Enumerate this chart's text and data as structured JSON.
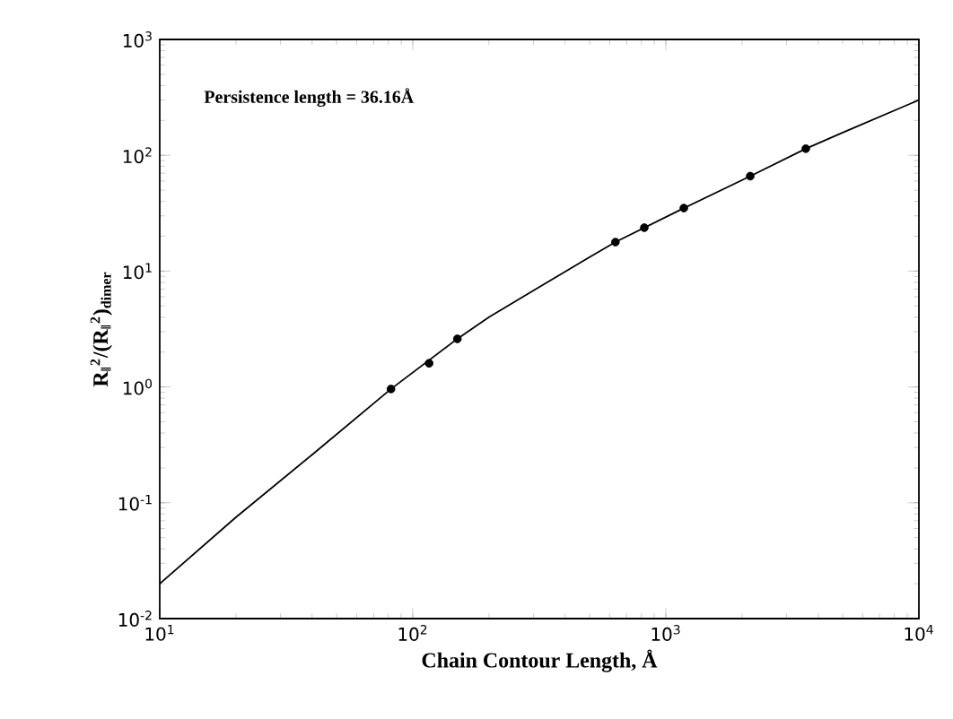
{
  "chart_data": {
    "type": "line",
    "log": "xy",
    "xlabel": "Chain Contour Length, Å",
    "ylabel": "**R$_{‖}$$^{2}$/(R$_{‖}$$^{2}$)$_{dimer}$**",
    "annotations": [
      "Persistence length = 36.16Å"
    ],
    "xlim": [
      10,
      10000
    ],
    "ylim": [
      0.01,
      1000
    ],
    "xticks": [
      {
        "value": 10,
        "label": "10$^{1}$"
      },
      {
        "value": 100,
        "label": "10$^{2}$"
      },
      {
        "value": 1000,
        "label": "10$^{3}$"
      },
      {
        "value": 10000,
        "label": "10$^{4}$"
      }
    ],
    "yticks": [
      {
        "value": 0.01,
        "label": "10$^{-2}$"
      },
      {
        "value": 0.1,
        "label": "10$^{-1}$"
      },
      {
        "value": 1,
        "label": "10$^{0}$"
      },
      {
        "value": 10,
        "label": "10$^{1}$"
      },
      {
        "value": 100,
        "label": "10$^{2}$"
      },
      {
        "value": 1000,
        "label": "10$^{3}$"
      }
    ],
    "grid": false,
    "series": [
      {
        "type": "line",
        "color": "#000000",
        "marker": "none",
        "line_style": "solid",
        "x": [
          10,
          20,
          40,
          82,
          150,
          200,
          300,
          500,
          632,
          1178,
          2155,
          3573,
          5000,
          10000
        ],
        "values": [
          0.02,
          0.075,
          0.26,
          0.96,
          2.6,
          4.0,
          6.8,
          13.2,
          17.8,
          35,
          66,
          114,
          157,
          300
        ]
      },
      {
        "type": "scatter",
        "color": "#000000",
        "marker": "circle",
        "x": [
          82,
          116,
          150
        ],
        "values": [
          0.96,
          1.6,
          2.6
        ]
      },
      {
        "type": "scatter",
        "color": "#000000",
        "marker": "circle",
        "x": [
          632,
          822,
          1178,
          2155,
          3573
        ],
        "values": [
          17.8,
          23.7,
          35,
          66,
          114
        ]
      }
    ]
  }
}
